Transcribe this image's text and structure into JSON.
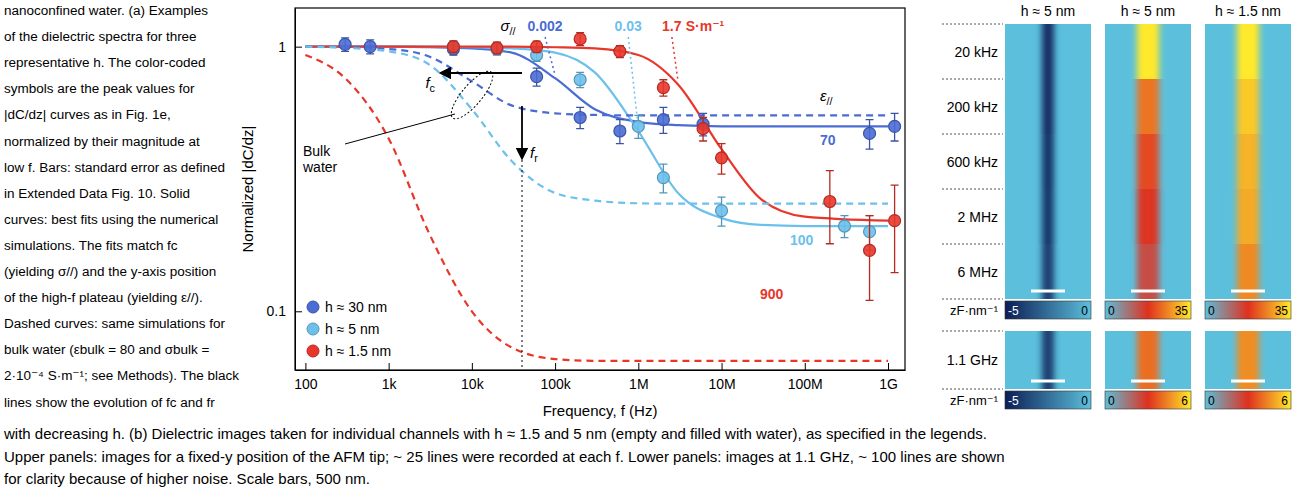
{
  "chart_data": {
    "type": "scatter",
    "xlabel": "Frequency, f (Hz)",
    "ylabel": "Normalized |dC/dz|",
    "log": true,
    "grid": false,
    "legend": "lower left",
    "xlim": [
      75,
      1600000000
    ],
    "ylim": [
      0.06,
      1.4
    ],
    "xticks": [
      100,
      {
        "value": 1000,
        "label": "1k"
      },
      {
        "value": 10000,
        "label": "10k"
      },
      {
        "value": 100000,
        "label": "100k"
      },
      {
        "value": 1000000,
        "label": "1M"
      },
      {
        "value": 10000000,
        "label": "10M"
      },
      {
        "value": 100000000,
        "label": "100M"
      },
      {
        "value": 1000000000,
        "label": "1G"
      }
    ],
    "yticks": [
      0.1,
      1
    ],
    "series": [
      {
        "name": "h ≈ 30 nm",
        "type": "scatter",
        "marker": "circle",
        "color": "#4a6cd4",
        "x": [
          300,
          600,
          6000,
          60000,
          200000,
          600000,
          2000000,
          6000000,
          600000000,
          1200000000
        ],
        "values": [
          1.02,
          1.0,
          0.98,
          0.77,
          0.54,
          0.48,
          0.53,
          0.51,
          0.47,
          0.5
        ],
        "errors": [
          0.06,
          0.06,
          0.05,
          0.06,
          0.05,
          0.05,
          0.06,
          0.05,
          0.06,
          0.06
        ]
      },
      {
        "name": "h ≈ 5 nm",
        "type": "scatter",
        "marker": "circle",
        "color": "#6cc0ec",
        "x": [
          6000,
          20000,
          60000,
          200000,
          1000000,
          2000000,
          10000000,
          300000000,
          600000000
        ],
        "values": [
          1.0,
          0.98,
          0.93,
          0.75,
          0.5,
          0.32,
          0.24,
          0.21,
          0.2
        ],
        "errors": [
          0.05,
          0.05,
          0.05,
          0.05,
          0.05,
          0.04,
          0.03,
          0.02,
          0.03
        ]
      },
      {
        "name": "h ≈ 1.5 nm",
        "type": "scatter",
        "marker": "circle",
        "color": "#e8362b",
        "x": [
          6000,
          20000,
          60000,
          200000,
          600000,
          2000000,
          6000000,
          10000000,
          200000000,
          600000000,
          1200000000
        ],
        "values": [
          1.0,
          0.99,
          1.0,
          1.07,
          0.96,
          0.7,
          0.49,
          0.38,
          0.26,
          0.17,
          0.22
        ],
        "errors": [
          0.05,
          0.05,
          0.05,
          0.06,
          0.05,
          0.05,
          0.05,
          0.05,
          0.08,
          0.06,
          0.08
        ]
      },
      {
        "type": "line",
        "line_style": "solid",
        "color": "#4a6cd4",
        "x": [
          100,
          300,
          1000,
          3000,
          10000,
          30000,
          100000,
          300000,
          1000000,
          3000000,
          10000000,
          30000000,
          100000000,
          1000000000
        ],
        "values": [
          1,
          1,
          1,
          0.995,
          0.985,
          0.95,
          0.76,
          0.58,
          0.52,
          0.505,
          0.5,
          0.5,
          0.5,
          0.5
        ]
      },
      {
        "type": "line",
        "line_style": "solid",
        "color": "#6cc0ec",
        "x": [
          100,
          300,
          1000,
          3000,
          10000,
          30000,
          100000,
          300000,
          1000000,
          3000000,
          10000000,
          30000000,
          100000000,
          1000000000
        ],
        "values": [
          1,
          1,
          1,
          1,
          0.995,
          0.985,
          0.95,
          0.8,
          0.48,
          0.28,
          0.225,
          0.212,
          0.21,
          0.21
        ]
      },
      {
        "type": "line",
        "line_style": "solid",
        "color": "#e8362b",
        "x": [
          100,
          300,
          1000,
          3000,
          10000,
          30000,
          100000,
          300000,
          1000000,
          3000000,
          10000000,
          30000000,
          100000000,
          1000000000
        ],
        "values": [
          1,
          1,
          1,
          1,
          1,
          1,
          0.995,
          0.985,
          0.93,
          0.72,
          0.41,
          0.265,
          0.228,
          0.22
        ]
      },
      {
        "type": "line",
        "line_style": "dashed",
        "color": "#4a6cd4",
        "x": [
          100,
          300,
          1000,
          3000,
          10000,
          30000,
          100000,
          300000,
          1000000,
          3000000,
          10000000,
          30000000,
          100000000,
          1000000000
        ],
        "values": [
          1,
          0.995,
          0.98,
          0.92,
          0.74,
          0.6,
          0.56,
          0.552,
          0.55,
          0.55,
          0.55,
          0.55,
          0.55,
          0.55
        ]
      },
      {
        "type": "line",
        "line_style": "dashed",
        "color": "#6cc0ec",
        "x": [
          100,
          300,
          1000,
          3000,
          10000,
          30000,
          100000,
          300000,
          1000000,
          3000000,
          10000000,
          30000000,
          100000000,
          1000000000
        ],
        "values": [
          1,
          0.99,
          0.96,
          0.86,
          0.58,
          0.37,
          0.28,
          0.262,
          0.256,
          0.255,
          0.255,
          0.255,
          0.255,
          0.255
        ]
      },
      {
        "type": "line",
        "line_style": "dashed",
        "color": "#e8362b",
        "x": [
          100,
          300,
          1000,
          3000,
          10000,
          30000,
          100000,
          300000,
          1000000,
          3000000,
          10000000,
          30000000,
          100000000,
          1000000000
        ],
        "values": [
          0.93,
          0.76,
          0.45,
          0.2,
          0.1,
          0.073,
          0.066,
          0.065,
          0.065,
          0.065,
          0.065,
          0.065,
          0.065,
          0.065
        ]
      }
    ],
    "annotations": {
      "sigma_label": "σ//",
      "sigma": [
        0.002,
        0.03,
        1.7
      ],
      "sigma_unit": "S·m⁻¹",
      "epsilon_label": "ε//",
      "epsilon": [
        70,
        100,
        900
      ],
      "fc_label": "fc",
      "fr_label": "fr",
      "bulk_label": "Bulk water"
    }
  },
  "images": {
    "row_labels": [
      "20 kHz",
      "200 kHz",
      "600 kHz",
      "2 MHz",
      "6 MHz"
    ],
    "lower_row_label": "1.1 GHz",
    "colorbar_label": "zF·nm⁻¹",
    "columns": [
      {
        "header": "h ≈ 5 nm",
        "upper": {
          "stripe": [
            -4.5,
            -4.5,
            -4.3,
            -4.2,
            -4
          ],
          "colorbar_range": [
            -5,
            0
          ],
          "colorbar_ticks": [
            -5,
            0
          ]
        },
        "lower": {
          "stripe": [
            -4
          ],
          "colorbar_range": [
            -5,
            0
          ],
          "colorbar_ticks": [
            -5,
            0
          ]
        }
      },
      {
        "header": "h ≈ 5 nm",
        "upper": {
          "stripe": [
            35,
            24,
            20,
            17,
            14
          ],
          "colorbar_range": [
            0,
            35
          ],
          "colorbar_ticks": [
            0,
            35
          ]
        },
        "lower": {
          "stripe": [
            4
          ],
          "colorbar_range": [
            0,
            6
          ],
          "colorbar_ticks": [
            0,
            6
          ]
        }
      },
      {
        "header": "h ≈ 1.5 nm",
        "upper": {
          "stripe": [
            35,
            32,
            30,
            29,
            26
          ],
          "colorbar_range": [
            0,
            35
          ],
          "colorbar_ticks": [
            0,
            35
          ]
        },
        "lower": {
          "stripe": [
            4.5
          ],
          "colorbar_range": [
            0,
            6
          ],
          "colorbar_ticks": [
            0,
            6
          ]
        }
      }
    ]
  },
  "caption": {
    "side_lines": [
      "nanoconfined water. (a) Examples",
      "of the dielectric spectra for three",
      "representative h. The color-coded",
      "symbols are the peak values for",
      "|dC/dz| curves as in Fig. 1e,",
      "normalized by their magnitude at",
      "low f. Bars: standard error as defined",
      "in Extended Data Fig. 10. Solid",
      "curves: best fits using the numerical",
      "simulations. The fits match fc",
      "(yielding σ//) and the y-axis position",
      "of the high-f plateau (yielding ε//).",
      "Dashed curves: same simulations for",
      "bulk water (εbulk = 80 and σbulk =",
      "2·10⁻⁴ S·m⁻¹; see Methods). The black",
      "lines show the evolution of fc and fr"
    ],
    "bottom_lines": [
      "with decreasing h. (b) Dielectric images taken for individual channels with h ≈ 1.5 and 5 nm (empty and filled with water), as specified in the legends.",
      "Upper panels: images for a fixed-y position of the AFM tip; ~ 25 lines were recorded at each f. Lower panels: images at 1.1 GHz, ~ 100 lines are shown",
      "for clarity because of higher noise. Scale bars, 500 nm."
    ]
  }
}
